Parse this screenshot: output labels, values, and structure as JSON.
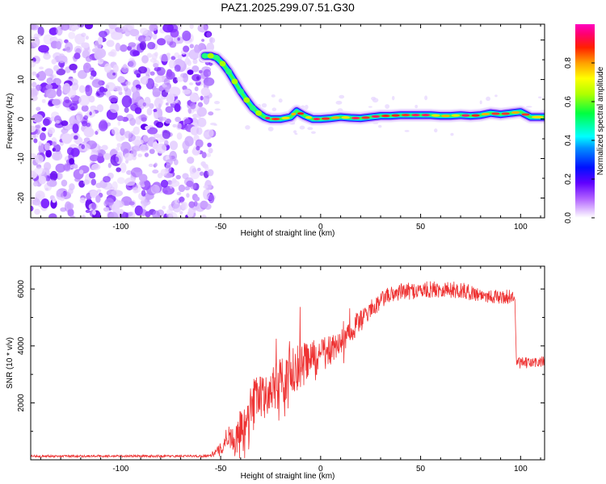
{
  "title": "PAZ1.2025.299.07.51.G30",
  "chart_data": [
    {
      "type": "heatmap",
      "name": "spectrogram",
      "xlabel": "Height of straight line (km)",
      "ylabel": "Frequency (Hz)",
      "xlim": [
        -145,
        112
      ],
      "ylim": [
        -25,
        24
      ],
      "xticks": [
        -100,
        -50,
        0,
        50,
        100
      ],
      "yticks": [
        20,
        10,
        0,
        -10,
        -20
      ],
      "noise_region_x": [
        -145,
        -54
      ],
      "ridge": {
        "x": [
          -58,
          -55,
          -52,
          -49,
          -46,
          -43,
          -40,
          -37,
          -34,
          -31,
          -28,
          -25,
          -20,
          -15,
          -12,
          -8,
          -4,
          0,
          5,
          10,
          15,
          20,
          25,
          30,
          35,
          40,
          45,
          50,
          55,
          60,
          65,
          70,
          75,
          80,
          85,
          90,
          95,
          100,
          105,
          112
        ],
        "freq": [
          16,
          16,
          15.5,
          14,
          12,
          9.5,
          7,
          4.8,
          2.8,
          1.5,
          0.5,
          0,
          0,
          0.5,
          2,
          0.8,
          0,
          0,
          0.2,
          0.5,
          0.3,
          0.2,
          0.5,
          0.8,
          0.8,
          1,
          1,
          1,
          1,
          0.8,
          0.8,
          1,
          0.8,
          1,
          1.5,
          1.2,
          1.5,
          1.8,
          0.5,
          0.5
        ]
      },
      "colorbar": {
        "label": "Normalized spectral amplitude",
        "range": [
          0.0,
          1.0
        ],
        "ticks": [
          "0.0",
          "0.2",
          "0.4",
          "0.6",
          "0.8"
        ],
        "tick_values": [
          0.0,
          0.2,
          0.4,
          0.6,
          0.8
        ]
      }
    },
    {
      "type": "line",
      "name": "snr",
      "xlabel": "Height of straight line (km)",
      "ylabel": "SNR (10 * v/v)",
      "xlim": [
        -145,
        112
      ],
      "ylim": [
        0,
        6800
      ],
      "xticks": [
        -100,
        -50,
        0,
        50,
        100
      ],
      "yticks": [
        2000,
        4000,
        6000
      ],
      "color": "#ee3333",
      "envelope": {
        "x": [
          -145,
          -60,
          -55,
          -50,
          -46,
          -43,
          -40,
          -37,
          -34,
          -30,
          -25,
          -20,
          -15,
          -10,
          -5,
          0,
          5,
          10,
          15,
          20,
          25,
          30,
          35,
          40,
          50,
          60,
          70,
          80,
          90,
          97,
          98,
          100,
          105,
          112
        ],
        "mean": [
          130,
          130,
          160,
          350,
          900,
          550,
          1100,
          1200,
          1900,
          2200,
          2400,
          2700,
          3100,
          3300,
          3500,
          3700,
          3850,
          4100,
          4500,
          4900,
          5200,
          5600,
          5800,
          5900,
          5950,
          6000,
          5950,
          5800,
          5700,
          5750,
          3400,
          3400,
          3400,
          3450
        ],
        "spread": [
          40,
          40,
          60,
          250,
          400,
          500,
          700,
          800,
          900,
          900,
          900,
          900,
          800,
          800,
          700,
          600,
          500,
          450,
          400,
          350,
          300,
          300,
          300,
          300,
          300,
          300,
          300,
          250,
          250,
          250,
          200,
          200,
          200,
          200
        ]
      }
    }
  ]
}
